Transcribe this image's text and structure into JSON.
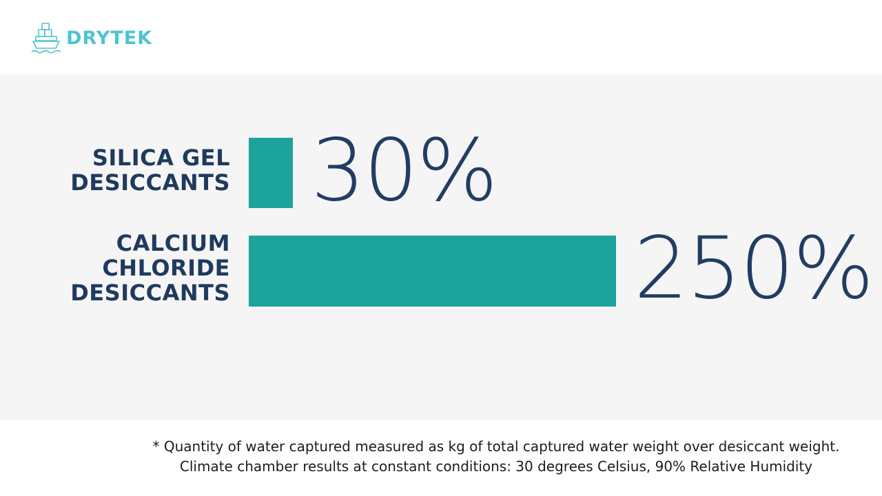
{
  "brand": {
    "name": "DRYTEK",
    "color": "#4fc4cd"
  },
  "colors": {
    "bar": "#1ba39c",
    "label": "#1f3a5e",
    "value": "#223d62"
  },
  "chart_data": {
    "type": "bar",
    "orientation": "horizontal",
    "categories": [
      "SILICA GEL\nDESICCANTS",
      "CALCIUM\nCHLORIDE\nDESICCANTS"
    ],
    "values": [
      30,
      250
    ],
    "value_labels": [
      "30%",
      "250%"
    ],
    "unit": "%",
    "title": "",
    "xlabel": "",
    "ylabel": "",
    "grid": false,
    "legend": "none"
  },
  "footnote": {
    "line1": "* Quantity of water captured measured as kg of total captured water weight over desiccant weight.",
    "line2": "Climate chamber results at constant conditions: 30 degrees Celsius, 90% Relative Humidity"
  }
}
